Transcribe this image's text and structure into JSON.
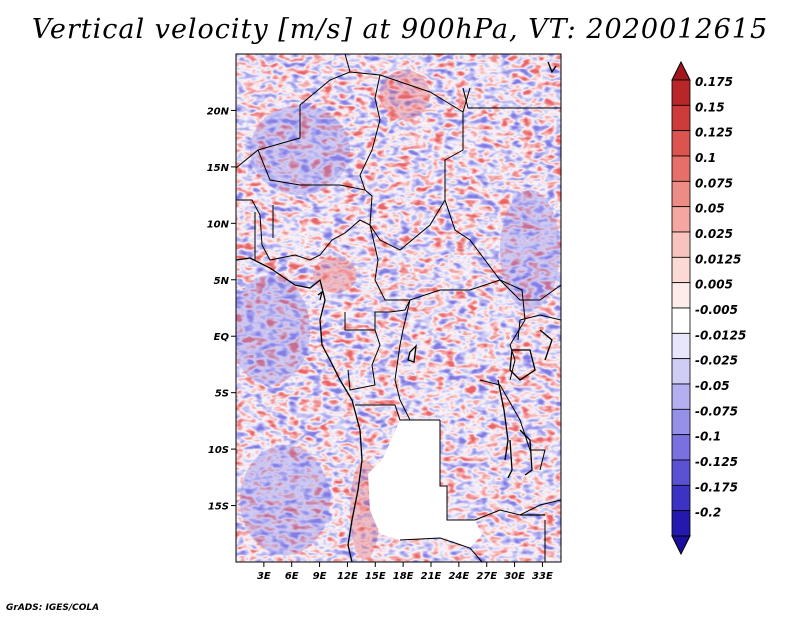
{
  "title": "Vertical velocity [m/s] at 900hPa, VT: 2020012615",
  "credit": "GrADS: IGES/COLA",
  "map": {
    "variable": "Vertical velocity",
    "units": "m/s",
    "level": "900hPa",
    "valid_time": "2020012615",
    "lon_range": [
      0,
      35
    ],
    "lat_range": [
      -20,
      25
    ],
    "lat_labels": [
      {
        "value": 20,
        "text": "20N"
      },
      {
        "value": 15,
        "text": "15N"
      },
      {
        "value": 10,
        "text": "10N"
      },
      {
        "value": 5,
        "text": "5N"
      },
      {
        "value": 0,
        "text": "EQ"
      },
      {
        "value": -5,
        "text": "5S"
      },
      {
        "value": -10,
        "text": "10S"
      },
      {
        "value": -15,
        "text": "15S"
      }
    ],
    "lon_labels": [
      {
        "value": 3,
        "text": "3E"
      },
      {
        "value": 6,
        "text": "6E"
      },
      {
        "value": 9,
        "text": "9E"
      },
      {
        "value": 12,
        "text": "12E"
      },
      {
        "value": 15,
        "text": "15E"
      },
      {
        "value": 18,
        "text": "18E"
      },
      {
        "value": 21,
        "text": "21E"
      },
      {
        "value": 24,
        "text": "24E"
      },
      {
        "value": 27,
        "text": "27E"
      },
      {
        "value": 30,
        "text": "30E"
      },
      {
        "value": 33,
        "text": "33E"
      }
    ]
  },
  "colorbar": {
    "levels": [
      {
        "label": "0.175",
        "color": "#b8262a"
      },
      {
        "label": "0.15",
        "color": "#cd3c3a"
      },
      {
        "label": "0.125",
        "color": "#dc5450"
      },
      {
        "label": "0.1",
        "color": "#e66f69"
      },
      {
        "label": "0.075",
        "color": "#ed8c85"
      },
      {
        "label": "0.05",
        "color": "#f3a7a0"
      },
      {
        "label": "0.025",
        "color": "#f8c3bd"
      },
      {
        "label": "0.0125",
        "color": "#fbd9d5"
      },
      {
        "label": "0.005",
        "color": "#fdece9"
      },
      {
        "label": "-0.005",
        "color": "#ffffff"
      },
      {
        "label": "-0.0125",
        "color": "#e7e6fb"
      },
      {
        "label": "-0.025",
        "color": "#cfcdf6"
      },
      {
        "label": "-0.05",
        "color": "#b3b0f0"
      },
      {
        "label": "-0.075",
        "color": "#9691e8"
      },
      {
        "label": "-0.1",
        "color": "#7871df"
      },
      {
        "label": "-0.125",
        "color": "#5a52d2"
      },
      {
        "label": "-0.175",
        "color": "#3c33c2"
      },
      {
        "label": "-0.2",
        "color": "#2418ae"
      }
    ],
    "top_color": "#a3161e",
    "bottom_color": "#1a0e9e"
  }
}
